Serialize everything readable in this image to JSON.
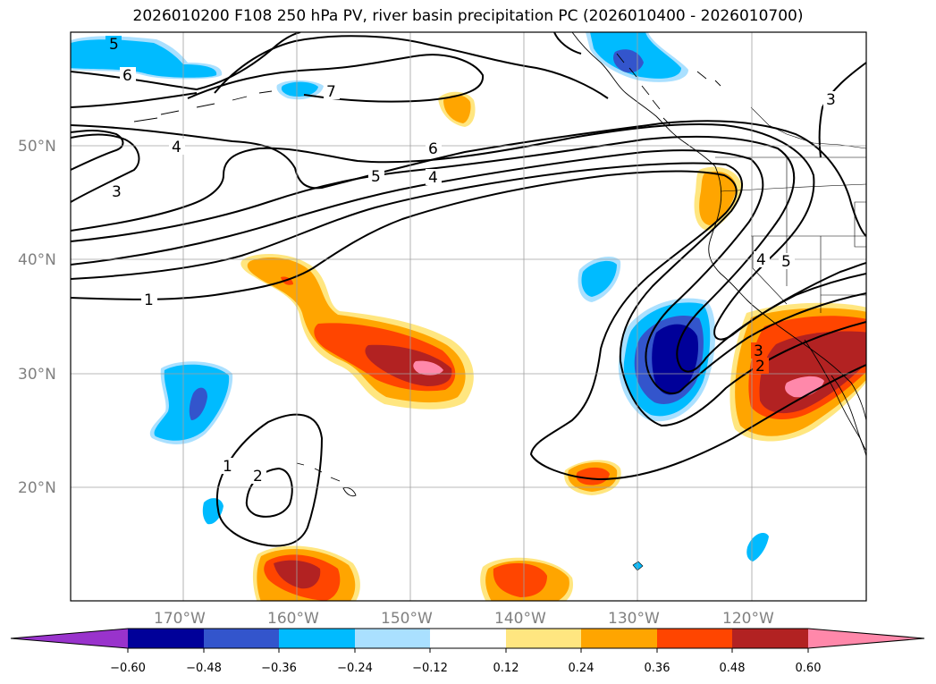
{
  "title": "2026010200 F108 250 hPa PV, river basin precipitation PC (2026010400 - 2026010700)",
  "map": {
    "lat_labels": [
      "50°N",
      "40°N",
      "30°N",
      "20°N"
    ],
    "lon_labels": [
      "170°W",
      "160°W",
      "150°W",
      "140°W",
      "130°W",
      "120°W"
    ],
    "pv_contour_labels": [
      "5",
      "6",
      "7",
      "6",
      "5",
      "4",
      "4",
      "3",
      "3",
      "1",
      "1",
      "2",
      "4",
      "5",
      "3",
      "2"
    ]
  },
  "colorbar": {
    "tick_labels": [
      "−0.60",
      "−0.48",
      "−0.36",
      "−0.24",
      "−0.12",
      "0.12",
      "0.24",
      "0.36",
      "0.48",
      "0.60"
    ],
    "colors": [
      "#9933cc",
      "#000099",
      "#3355cc",
      "#00bbff",
      "#aae0ff",
      "#ffffff",
      "#ffe680",
      "#ffa500",
      "#ff4500",
      "#b22222",
      "#ff88aa"
    ]
  }
}
